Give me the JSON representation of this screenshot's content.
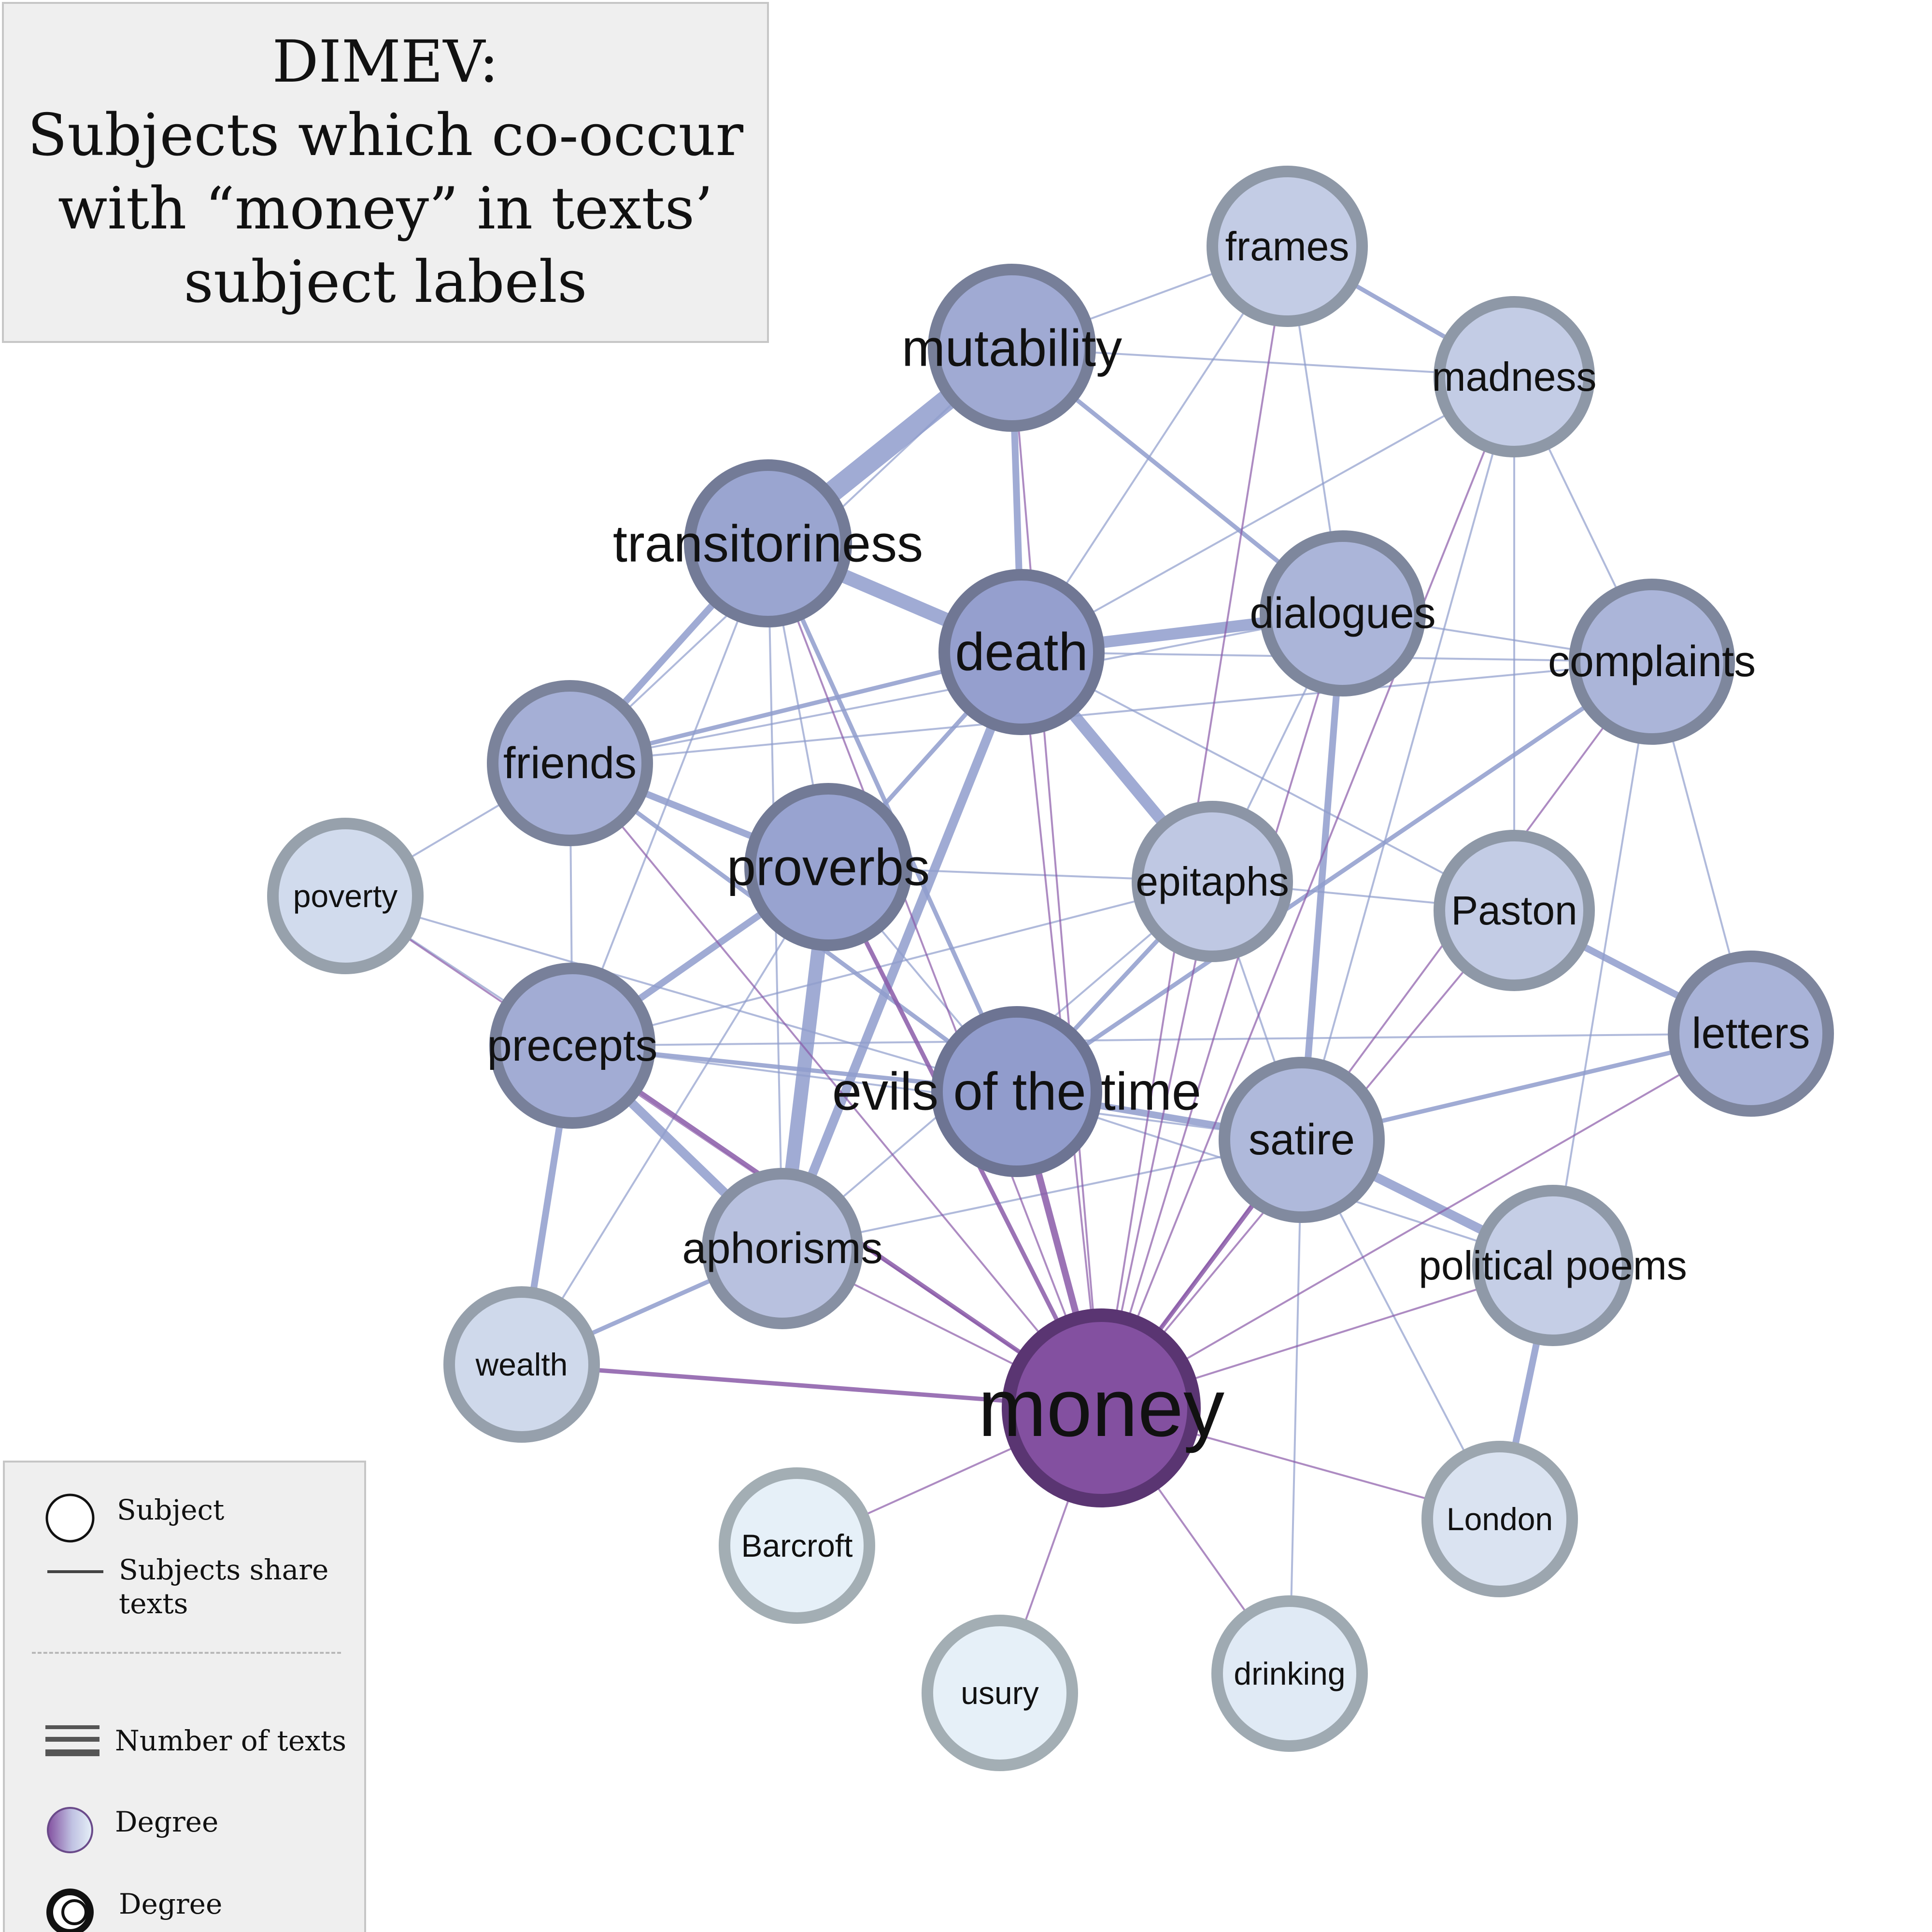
{
  "title": {
    "lines": [
      "DIMEV:",
      "Subjects which co-occur",
      "with “money” in texts’",
      "subject labels"
    ]
  },
  "legend": {
    "subject": "Subject",
    "edges_line1": "Subjects share",
    "edges_line2": "texts",
    "number_of_texts": "Number of texts",
    "degree_color": "Degree",
    "degree_ring": "Degree"
  },
  "colors": {
    "money_fill": "#8350a0",
    "money_stroke": "#5a3572",
    "edge_blue": "#8f9ccc",
    "edge_purple": "#8a5aa8",
    "background": "#ffffff",
    "legend_bg": "#efefef"
  },
  "nodes": [
    {
      "id": "money",
      "label": "money",
      "degree": 1.0
    },
    {
      "id": "evils",
      "label": "evils of the time",
      "degree": 0.88
    },
    {
      "id": "death",
      "label": "death",
      "degree": 0.84
    },
    {
      "id": "proverbs",
      "label": "proverbs",
      "degree": 0.8
    },
    {
      "id": "transitoriness",
      "label": "transitoriness",
      "degree": 0.78
    },
    {
      "id": "mutability",
      "label": "mutability",
      "degree": 0.72
    },
    {
      "id": "precepts",
      "label": "precepts",
      "degree": 0.7
    },
    {
      "id": "friends",
      "label": "friends",
      "degree": 0.66
    },
    {
      "id": "dialogues",
      "label": "dialogues",
      "degree": 0.6
    },
    {
      "id": "complaints",
      "label": "complaints",
      "degree": 0.6
    },
    {
      "id": "letters",
      "label": "letters",
      "degree": 0.62
    },
    {
      "id": "satire",
      "label": "satire",
      "degree": 0.55
    },
    {
      "id": "aphorisms",
      "label": "aphorisms",
      "degree": 0.46
    },
    {
      "id": "epitaphs",
      "label": "epitaphs",
      "degree": 0.38
    },
    {
      "id": "paston",
      "label": "Paston",
      "degree": 0.34
    },
    {
      "id": "frames",
      "label": "frames",
      "degree": 0.34
    },
    {
      "id": "madness",
      "label": "madness",
      "degree": 0.34
    },
    {
      "id": "political",
      "label": "political poems",
      "degree": 0.32
    },
    {
      "id": "poverty",
      "label": "poverty",
      "degree": 0.2
    },
    {
      "id": "wealth",
      "label": "wealth",
      "degree": 0.22
    },
    {
      "id": "london",
      "label": "London",
      "degree": 0.12
    },
    {
      "id": "drinking",
      "label": "drinking",
      "degree": 0.06
    },
    {
      "id": "barcroft",
      "label": "Barcroft",
      "degree": 0.0
    },
    {
      "id": "usury",
      "label": "usury",
      "degree": 0.0
    }
  ],
  "edges": [
    {
      "source": "mutability",
      "target": "transitoriness",
      "texts": 9
    },
    {
      "source": "transitoriness",
      "target": "death",
      "texts": 6
    },
    {
      "source": "death",
      "target": "dialogues",
      "texts": 5
    },
    {
      "source": "proverbs",
      "target": "aphorisms",
      "texts": 6
    },
    {
      "source": "death",
      "target": "epitaphs",
      "texts": 5
    },
    {
      "source": "death",
      "target": "aphorisms",
      "texts": 4
    },
    {
      "source": "precepts",
      "target": "aphorisms",
      "texts": 4
    },
    {
      "source": "satire",
      "target": "political",
      "texts": 4
    },
    {
      "source": "dialogues",
      "target": "satire",
      "texts": 3
    },
    {
      "source": "paston",
      "target": "letters",
      "texts": 3
    },
    {
      "source": "london",
      "target": "political",
      "texts": 3
    },
    {
      "source": "precepts",
      "target": "wealth",
      "texts": 3
    },
    {
      "source": "transitoriness",
      "target": "friends",
      "texts": 3
    },
    {
      "source": "proverbs",
      "target": "precepts",
      "texts": 3
    },
    {
      "source": "frames",
      "target": "madness",
      "texts": 2
    },
    {
      "source": "evils",
      "target": "satire",
      "texts": 3
    },
    {
      "source": "mutability",
      "target": "death",
      "texts": 3
    },
    {
      "source": "mutability",
      "target": "dialogues",
      "texts": 2
    },
    {
      "source": "friends",
      "target": "proverbs",
      "texts": 3
    },
    {
      "source": "friends",
      "target": "evils",
      "texts": 2
    },
    {
      "source": "precepts",
      "target": "evils",
      "texts": 2
    },
    {
      "source": "transitoriness",
      "target": "evils",
      "texts": 2
    },
    {
      "source": "complaints",
      "target": "evils",
      "texts": 2
    },
    {
      "source": "death",
      "target": "friends",
      "texts": 2
    },
    {
      "source": "death",
      "target": "proverbs",
      "texts": 2
    },
    {
      "source": "wealth",
      "target": "aphorisms",
      "texts": 2
    },
    {
      "source": "letters",
      "target": "satire",
      "texts": 2
    },
    {
      "source": "epitaphs",
      "target": "evils",
      "texts": 2
    },
    {
      "source": "dialogues",
      "target": "complaints",
      "texts": 1
    },
    {
      "source": "death",
      "target": "complaints",
      "texts": 1
    },
    {
      "source": "friends",
      "target": "complaints",
      "texts": 1
    },
    {
      "source": "mutability",
      "target": "madness",
      "texts": 1
    },
    {
      "source": "mutability",
      "target": "frames",
      "texts": 1
    },
    {
      "source": "frames",
      "target": "dialogues",
      "texts": 1
    },
    {
      "source": "frames",
      "target": "death",
      "texts": 1
    },
    {
      "source": "madness",
      "target": "complaints",
      "texts": 1
    },
    {
      "source": "madness",
      "target": "death",
      "texts": 1
    },
    {
      "source": "madness",
      "target": "paston",
      "texts": 1
    },
    {
      "source": "madness",
      "target": "satire",
      "texts": 1
    },
    {
      "source": "complaints",
      "target": "letters",
      "texts": 1
    },
    {
      "source": "complaints",
      "target": "political",
      "texts": 1
    },
    {
      "source": "poverty",
      "target": "friends",
      "texts": 1
    },
    {
      "source": "poverty",
      "target": "precepts",
      "texts": 1
    },
    {
      "source": "poverty",
      "target": "evils",
      "texts": 1
    },
    {
      "source": "friends",
      "target": "precepts",
      "texts": 1
    },
    {
      "source": "transitoriness",
      "target": "precepts",
      "texts": 1
    },
    {
      "source": "transitoriness",
      "target": "proverbs",
      "texts": 1
    },
    {
      "source": "proverbs",
      "target": "epitaphs",
      "texts": 1
    },
    {
      "source": "proverbs",
      "target": "evils",
      "texts": 1
    },
    {
      "source": "proverbs",
      "target": "wealth",
      "texts": 1
    },
    {
      "source": "epitaphs",
      "target": "paston",
      "texts": 1
    },
    {
      "source": "epitaphs",
      "target": "satire",
      "texts": 1
    },
    {
      "source": "epitaphs",
      "target": "precepts",
      "texts": 1
    },
    {
      "source": "precepts",
      "target": "satire",
      "texts": 1
    },
    {
      "source": "precepts",
      "target": "letters",
      "texts": 1
    },
    {
      "source": "aphorisms",
      "target": "satire",
      "texts": 1
    },
    {
      "source": "aphorisms",
      "target": "epitaphs",
      "texts": 1
    },
    {
      "source": "satire",
      "target": "drinking",
      "texts": 1
    },
    {
      "source": "satire",
      "target": "london",
      "texts": 1
    },
    {
      "source": "evils",
      "target": "political",
      "texts": 1
    },
    {
      "source": "dialogues",
      "target": "epitaphs",
      "texts": 1
    },
    {
      "source": "dialogues",
      "target": "friends",
      "texts": 1
    },
    {
      "source": "death",
      "target": "paston",
      "texts": 1
    },
    {
      "source": "mutability",
      "target": "friends",
      "texts": 1
    },
    {
      "source": "transitoriness",
      "target": "aphorisms",
      "texts": 1
    },
    {
      "source": "money",
      "target": "evils",
      "texts": 3
    },
    {
      "source": "money",
      "target": "proverbs",
      "texts": 2
    },
    {
      "source": "money",
      "target": "satire",
      "texts": 2
    },
    {
      "source": "money",
      "target": "precepts",
      "texts": 2
    },
    {
      "source": "money",
      "target": "wealth",
      "texts": 2
    },
    {
      "source": "money",
      "target": "death",
      "texts": 1
    },
    {
      "source": "money",
      "target": "transitoriness",
      "texts": 1
    },
    {
      "source": "money",
      "target": "mutability",
      "texts": 1
    },
    {
      "source": "money",
      "target": "epitaphs",
      "texts": 1
    },
    {
      "source": "money",
      "target": "dialogues",
      "texts": 1
    },
    {
      "source": "money",
      "target": "frames",
      "texts": 1
    },
    {
      "source": "money",
      "target": "madness",
      "texts": 1
    },
    {
      "source": "money",
      "target": "complaints",
      "texts": 1
    },
    {
      "source": "money",
      "target": "paston",
      "texts": 1
    },
    {
      "source": "money",
      "target": "letters",
      "texts": 1
    },
    {
      "source": "money",
      "target": "political",
      "texts": 1
    },
    {
      "source": "money",
      "target": "aphorisms",
      "texts": 1
    },
    {
      "source": "money",
      "target": "friends",
      "texts": 1
    },
    {
      "source": "money",
      "target": "poverty",
      "texts": 1
    },
    {
      "source": "money",
      "target": "london",
      "texts": 1
    },
    {
      "source": "money",
      "target": "drinking",
      "texts": 1
    },
    {
      "source": "money",
      "target": "usury",
      "texts": 1
    },
    {
      "source": "money",
      "target": "barcroft",
      "texts": 1
    }
  ]
}
